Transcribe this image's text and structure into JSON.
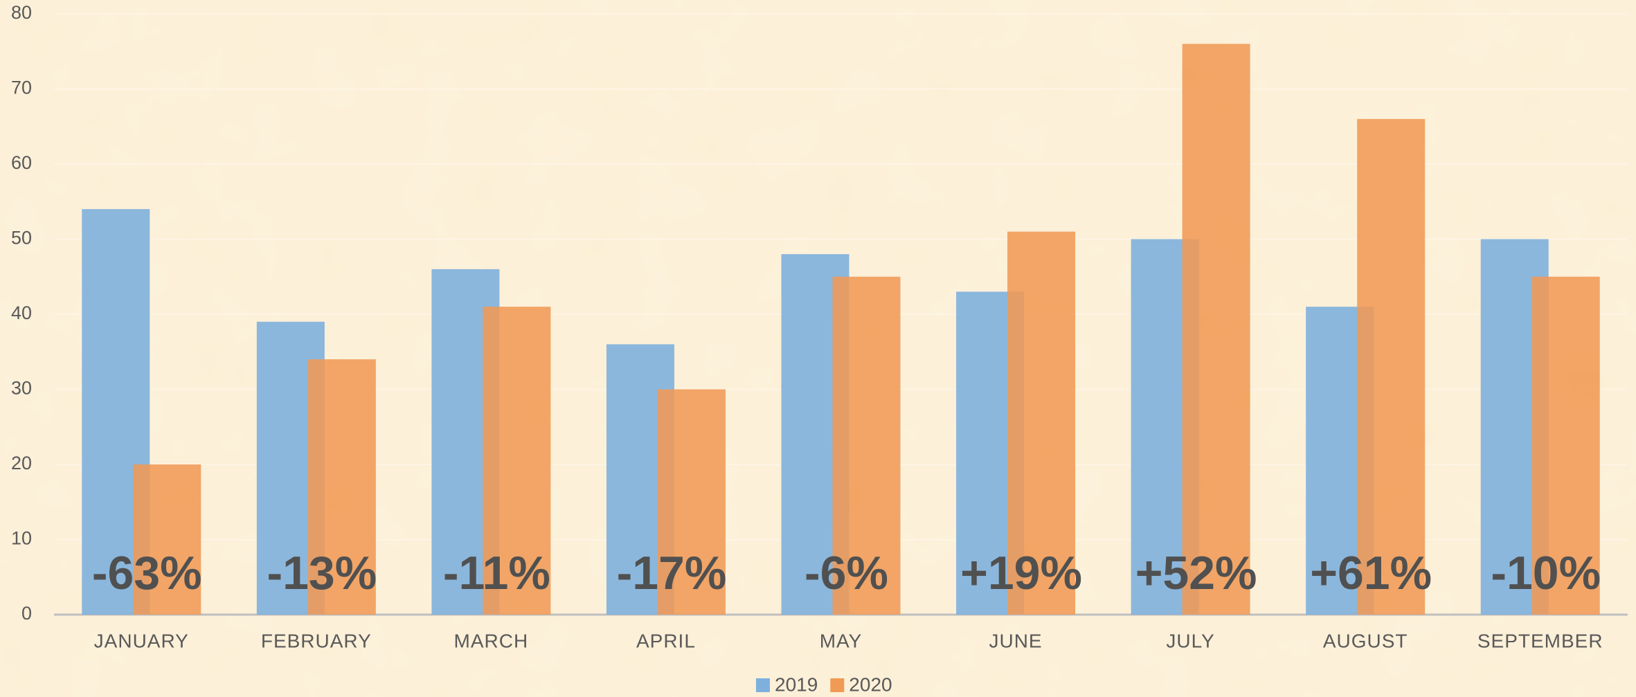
{
  "chart_data": {
    "type": "bar",
    "categories": [
      "JANUARY",
      "FEBRUARY",
      "MARCH",
      "APRIL",
      "MAY",
      "JUNE",
      "JULY",
      "AUGUST",
      "SEPTEMBER"
    ],
    "series": [
      {
        "name": "2019",
        "color": "#7eb0dd",
        "values": [
          54,
          39,
          46,
          36,
          48,
          43,
          50,
          41,
          50
        ]
      },
      {
        "name": "2020",
        "color": "#f09a55",
        "values": [
          20,
          34,
          41,
          30,
          45,
          51,
          76,
          66,
          45
        ]
      }
    ],
    "annotations": [
      "-63%",
      "-13%",
      "-11%",
      "-17%",
      "-6%",
      "+19%",
      "+52%",
      "+61%",
      "-10%"
    ],
    "ylim": [
      0,
      80
    ],
    "yticks": [
      0,
      10,
      20,
      30,
      40,
      50,
      60,
      70,
      80
    ],
    "grid": true,
    "legend": "bottom"
  }
}
